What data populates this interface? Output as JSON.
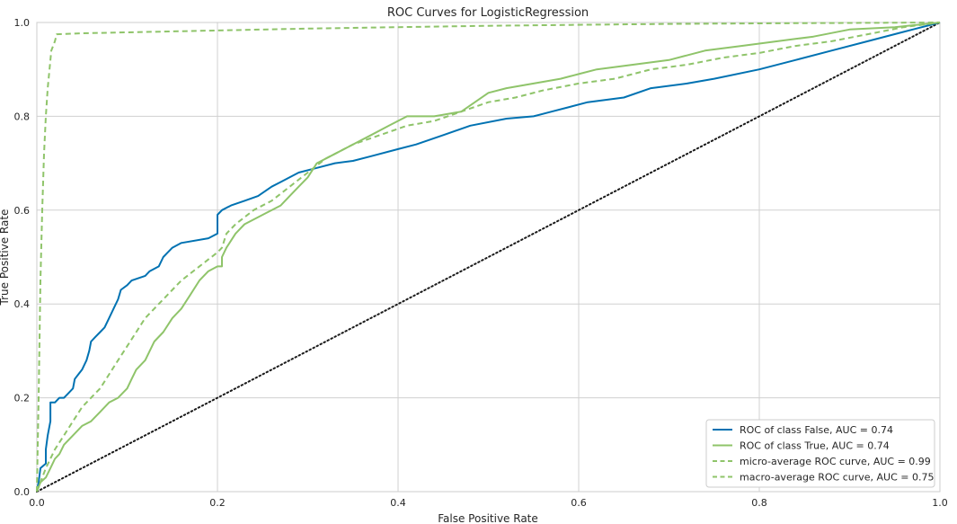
{
  "chart_data": {
    "type": "line",
    "title": "ROC Curves for LogisticRegression",
    "xlabel": "False Positive Rate",
    "ylabel": "True Positive Rate",
    "xlim": [
      0,
      1
    ],
    "ylim": [
      0,
      1
    ],
    "xticks": [
      "0.0",
      "0.2",
      "0.4",
      "0.6",
      "0.8",
      "1.0"
    ],
    "yticks": [
      "0.0",
      "0.2",
      "0.4",
      "0.6",
      "0.8",
      "1.0"
    ],
    "grid": true,
    "legend_position": "bottom-right",
    "colors": {
      "blue": "#0072b2",
      "green": "#8fc46a",
      "diagonal": "#1a1a1a",
      "grid": "#d0d0d0",
      "axes": "#cccccc"
    },
    "series": [
      {
        "name": "ROC of class False, AUC = 0.74",
        "color": "#0072b2",
        "style": "solid",
        "points": [
          [
            0,
            0
          ],
          [
            0.002,
            0.02
          ],
          [
            0.004,
            0.05
          ],
          [
            0.01,
            0.06
          ],
          [
            0.01,
            0.09
          ],
          [
            0.012,
            0.12
          ],
          [
            0.015,
            0.15
          ],
          [
            0.015,
            0.19
          ],
          [
            0.02,
            0.19
          ],
          [
            0.025,
            0.2
          ],
          [
            0.03,
            0.2
          ],
          [
            0.035,
            0.21
          ],
          [
            0.04,
            0.22
          ],
          [
            0.042,
            0.24
          ],
          [
            0.046,
            0.25
          ],
          [
            0.05,
            0.26
          ],
          [
            0.055,
            0.28
          ],
          [
            0.058,
            0.3
          ],
          [
            0.06,
            0.32
          ],
          [
            0.065,
            0.33
          ],
          [
            0.07,
            0.34
          ],
          [
            0.075,
            0.35
          ],
          [
            0.08,
            0.37
          ],
          [
            0.085,
            0.39
          ],
          [
            0.09,
            0.41
          ],
          [
            0.093,
            0.43
          ],
          [
            0.1,
            0.44
          ],
          [
            0.105,
            0.45
          ],
          [
            0.12,
            0.46
          ],
          [
            0.125,
            0.47
          ],
          [
            0.135,
            0.48
          ],
          [
            0.14,
            0.5
          ],
          [
            0.145,
            0.51
          ],
          [
            0.15,
            0.52
          ],
          [
            0.16,
            0.53
          ],
          [
            0.19,
            0.54
          ],
          [
            0.2,
            0.55
          ],
          [
            0.2,
            0.59
          ],
          [
            0.205,
            0.6
          ],
          [
            0.215,
            0.61
          ],
          [
            0.23,
            0.62
          ],
          [
            0.245,
            0.63
          ],
          [
            0.26,
            0.65
          ],
          [
            0.27,
            0.66
          ],
          [
            0.28,
            0.67
          ],
          [
            0.29,
            0.68
          ],
          [
            0.31,
            0.69
          ],
          [
            0.33,
            0.7
          ],
          [
            0.35,
            0.705
          ],
          [
            0.37,
            0.715
          ],
          [
            0.4,
            0.73
          ],
          [
            0.42,
            0.74
          ],
          [
            0.45,
            0.76
          ],
          [
            0.48,
            0.78
          ],
          [
            0.52,
            0.795
          ],
          [
            0.55,
            0.8
          ],
          [
            0.57,
            0.81
          ],
          [
            0.59,
            0.82
          ],
          [
            0.61,
            0.83
          ],
          [
            0.65,
            0.84
          ],
          [
            0.68,
            0.86
          ],
          [
            0.72,
            0.87
          ],
          [
            0.75,
            0.88
          ],
          [
            0.8,
            0.9
          ],
          [
            0.84,
            0.92
          ],
          [
            0.88,
            0.94
          ],
          [
            0.92,
            0.96
          ],
          [
            0.96,
            0.98
          ],
          [
            1,
            1
          ]
        ]
      },
      {
        "name": "ROC of class True, AUC = 0.74",
        "color": "#8fc46a",
        "style": "solid",
        "points": [
          [
            0,
            0
          ],
          [
            0.004,
            0.02
          ],
          [
            0.01,
            0.03
          ],
          [
            0.015,
            0.05
          ],
          [
            0.02,
            0.07
          ],
          [
            0.025,
            0.08
          ],
          [
            0.03,
            0.1
          ],
          [
            0.04,
            0.12
          ],
          [
            0.05,
            0.14
          ],
          [
            0.06,
            0.15
          ],
          [
            0.07,
            0.17
          ],
          [
            0.08,
            0.19
          ],
          [
            0.09,
            0.2
          ],
          [
            0.1,
            0.22
          ],
          [
            0.105,
            0.24
          ],
          [
            0.11,
            0.26
          ],
          [
            0.12,
            0.28
          ],
          [
            0.13,
            0.32
          ],
          [
            0.14,
            0.34
          ],
          [
            0.15,
            0.37
          ],
          [
            0.16,
            0.39
          ],
          [
            0.17,
            0.42
          ],
          [
            0.18,
            0.45
          ],
          [
            0.19,
            0.47
          ],
          [
            0.2,
            0.48
          ],
          [
            0.205,
            0.48
          ],
          [
            0.205,
            0.5
          ],
          [
            0.21,
            0.52
          ],
          [
            0.22,
            0.55
          ],
          [
            0.23,
            0.57
          ],
          [
            0.24,
            0.58
          ],
          [
            0.25,
            0.59
          ],
          [
            0.27,
            0.61
          ],
          [
            0.28,
            0.63
          ],
          [
            0.29,
            0.65
          ],
          [
            0.3,
            0.67
          ],
          [
            0.31,
            0.7
          ],
          [
            0.33,
            0.72
          ],
          [
            0.35,
            0.74
          ],
          [
            0.37,
            0.76
          ],
          [
            0.39,
            0.78
          ],
          [
            0.41,
            0.8
          ],
          [
            0.44,
            0.8
          ],
          [
            0.47,
            0.81
          ],
          [
            0.5,
            0.85
          ],
          [
            0.52,
            0.86
          ],
          [
            0.55,
            0.87
          ],
          [
            0.58,
            0.88
          ],
          [
            0.6,
            0.89
          ],
          [
            0.62,
            0.9
          ],
          [
            0.66,
            0.91
          ],
          [
            0.7,
            0.92
          ],
          [
            0.74,
            0.94
          ],
          [
            0.78,
            0.95
          ],
          [
            0.82,
            0.96
          ],
          [
            0.86,
            0.97
          ],
          [
            0.9,
            0.985
          ],
          [
            0.95,
            0.99
          ],
          [
            1,
            1
          ]
        ]
      },
      {
        "name": "micro-average ROC curve, AUC = 0.99",
        "color": "#8fc46a",
        "style": "dashed",
        "points": [
          [
            0,
            0
          ],
          [
            0.002,
            0.2
          ],
          [
            0.004,
            0.45
          ],
          [
            0.006,
            0.6
          ],
          [
            0.008,
            0.72
          ],
          [
            0.01,
            0.8
          ],
          [
            0.012,
            0.86
          ],
          [
            0.014,
            0.9
          ],
          [
            0.016,
            0.94
          ],
          [
            0.02,
            0.96
          ],
          [
            0.022,
            0.975
          ],
          [
            0.05,
            0.977
          ],
          [
            0.1,
            0.979
          ],
          [
            0.2,
            0.983
          ],
          [
            0.3,
            0.987
          ],
          [
            0.4,
            0.99
          ],
          [
            0.5,
            0.993
          ],
          [
            0.6,
            0.995
          ],
          [
            0.7,
            0.997
          ],
          [
            0.8,
            0.998
          ],
          [
            0.9,
            0.999
          ],
          [
            1,
            1
          ]
        ]
      },
      {
        "name": "macro-average ROC curve, AUC = 0.75",
        "color": "#8fc46a",
        "style": "dashed",
        "points": [
          [
            0,
            0
          ],
          [
            0.01,
            0.05
          ],
          [
            0.02,
            0.09
          ],
          [
            0.03,
            0.12
          ],
          [
            0.04,
            0.15
          ],
          [
            0.05,
            0.18
          ],
          [
            0.06,
            0.2
          ],
          [
            0.07,
            0.22
          ],
          [
            0.08,
            0.25
          ],
          [
            0.09,
            0.28
          ],
          [
            0.1,
            0.31
          ],
          [
            0.11,
            0.34
          ],
          [
            0.12,
            0.37
          ],
          [
            0.13,
            0.39
          ],
          [
            0.14,
            0.41
          ],
          [
            0.15,
            0.43
          ],
          [
            0.16,
            0.45
          ],
          [
            0.18,
            0.48
          ],
          [
            0.2,
            0.51
          ],
          [
            0.205,
            0.52
          ],
          [
            0.21,
            0.55
          ],
          [
            0.22,
            0.57
          ],
          [
            0.24,
            0.6
          ],
          [
            0.26,
            0.62
          ],
          [
            0.28,
            0.65
          ],
          [
            0.3,
            0.68
          ],
          [
            0.32,
            0.71
          ],
          [
            0.35,
            0.74
          ],
          [
            0.38,
            0.76
          ],
          [
            0.41,
            0.78
          ],
          [
            0.44,
            0.79
          ],
          [
            0.47,
            0.81
          ],
          [
            0.5,
            0.83
          ],
          [
            0.53,
            0.84
          ],
          [
            0.56,
            0.855
          ],
          [
            0.6,
            0.87
          ],
          [
            0.64,
            0.88
          ],
          [
            0.68,
            0.9
          ],
          [
            0.72,
            0.91
          ],
          [
            0.76,
            0.925
          ],
          [
            0.8,
            0.935
          ],
          [
            0.84,
            0.95
          ],
          [
            0.88,
            0.96
          ],
          [
            0.92,
            0.975
          ],
          [
            0.96,
            0.99
          ],
          [
            1,
            1
          ]
        ]
      }
    ],
    "reference_line": {
      "points": [
        [
          0,
          0
        ],
        [
          1,
          1
        ]
      ],
      "style": "dotted"
    }
  }
}
